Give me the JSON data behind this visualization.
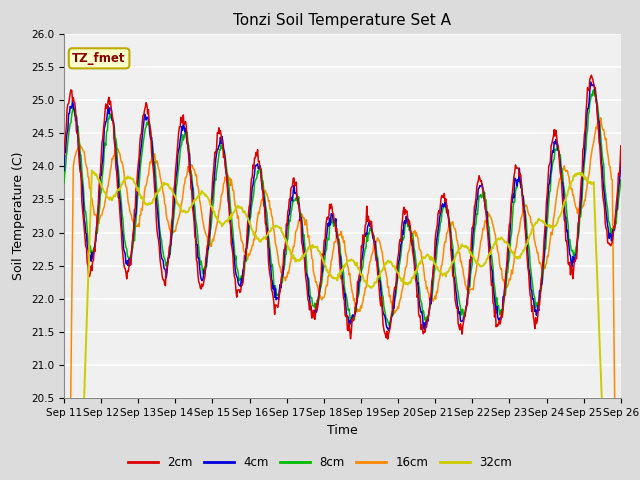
{
  "title": "Tonzi Soil Temperature Set A",
  "xlabel": "Time",
  "ylabel": "Soil Temperature (C)",
  "ylim": [
    20.5,
    26.0
  ],
  "yticks": [
    20.5,
    21.0,
    21.5,
    22.0,
    22.5,
    23.0,
    23.5,
    24.0,
    24.5,
    25.0,
    25.5,
    26.0
  ],
  "x_labels": [
    "Sep 11",
    "Sep 12",
    "Sep 13",
    "Sep 14",
    "Sep 15",
    "Sep 16",
    "Sep 17",
    "Sep 18",
    "Sep 19",
    "Sep 20",
    "Sep 21",
    "Sep 22",
    "Sep 23",
    "Sep 24",
    "Sep 25",
    "Sep 26"
  ],
  "series_labels": [
    "2cm",
    "4cm",
    "8cm",
    "16cm",
    "32cm"
  ],
  "series_colors": [
    "#DD0000",
    "#0000DD",
    "#00BB00",
    "#FF8800",
    "#CCCC00"
  ],
  "legend_box_facecolor": "#FFFFCC",
  "legend_box_edge": "#BBAA00",
  "legend_text": "TZ_fmet",
  "fig_facecolor": "#DCDCDC",
  "plot_facecolor": "#F0F0F0",
  "grid_color": "#FFFFFF",
  "title_fontsize": 11,
  "axis_label_fontsize": 9,
  "tick_fontsize": 7.5
}
